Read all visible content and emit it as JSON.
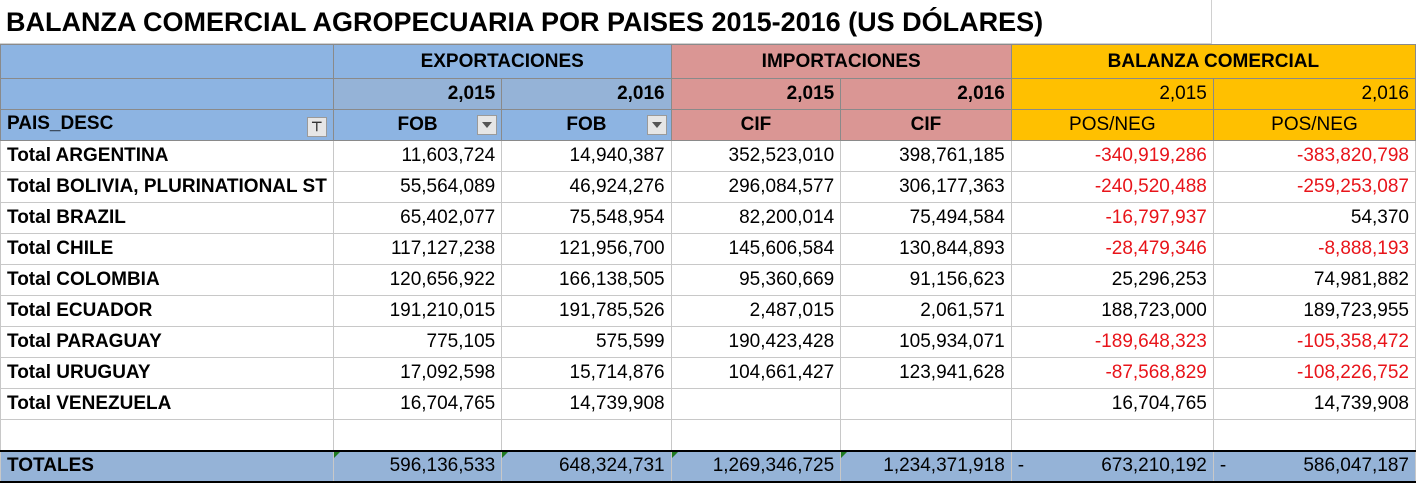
{
  "title": "BALANZA COMERCIAL AGROPECUARIA POR PAISES 2015-2016 (US DÓLARES)",
  "header": {
    "exportaciones": "EXPORTACIONES",
    "importaciones": "IMPORTACIONES",
    "balanza": "BALANZA COMERCIAL",
    "years": [
      "2,015",
      "2,016",
      "2,015",
      "2,016",
      "2,015",
      "2,016"
    ],
    "pais_desc": "PAIS_DESC",
    "units": [
      "FOB",
      "FOB",
      "CIF",
      "CIF",
      "POS/NEG",
      "POS/NEG"
    ]
  },
  "rows": [
    {
      "pais": "Total ARGENTINA",
      "exp2015": "11,603,724",
      "exp2016": "14,940,387",
      "imp2015": "352,523,010",
      "imp2016": "398,761,185",
      "bal2015": "-340,919,286",
      "bal2016": "-383,820,798"
    },
    {
      "pais": "Total BOLIVIA, PLURINATIONAL ST",
      "exp2015": "55,564,089",
      "exp2016": "46,924,276",
      "imp2015": "296,084,577",
      "imp2016": "306,177,363",
      "bal2015": "-240,520,488",
      "bal2016": "-259,253,087"
    },
    {
      "pais": "Total BRAZIL",
      "exp2015": "65,402,077",
      "exp2016": "75,548,954",
      "imp2015": "82,200,014",
      "imp2016": "75,494,584",
      "bal2015": "-16,797,937",
      "bal2016": "54,370"
    },
    {
      "pais": "Total CHILE",
      "exp2015": "117,127,238",
      "exp2016": "121,956,700",
      "imp2015": "145,606,584",
      "imp2016": "130,844,893",
      "bal2015": "-28,479,346",
      "bal2016": "-8,888,193"
    },
    {
      "pais": "Total COLOMBIA",
      "exp2015": "120,656,922",
      "exp2016": "166,138,505",
      "imp2015": "95,360,669",
      "imp2016": "91,156,623",
      "bal2015": "25,296,253",
      "bal2016": "74,981,882"
    },
    {
      "pais": "Total ECUADOR",
      "exp2015": "191,210,015",
      "exp2016": "191,785,526",
      "imp2015": "2,487,015",
      "imp2016": "2,061,571",
      "bal2015": "188,723,000",
      "bal2016": "189,723,955"
    },
    {
      "pais": "Total PARAGUAY",
      "exp2015": "775,105",
      "exp2016": "575,599",
      "imp2015": "190,423,428",
      "imp2016": "105,934,071",
      "bal2015": "-189,648,323",
      "bal2016": "-105,358,472"
    },
    {
      "pais": "Total URUGUAY",
      "exp2015": "17,092,598",
      "exp2016": "15,714,876",
      "imp2015": "104,661,427",
      "imp2016": "123,941,628",
      "bal2015": "-87,568,829",
      "bal2016": "-108,226,752"
    },
    {
      "pais": "Total VENEZUELA",
      "exp2015": "16,704,765",
      "exp2016": "14,739,908",
      "imp2015": "",
      "imp2016": "",
      "bal2015": "16,704,765",
      "bal2016": "14,739,908"
    }
  ],
  "totals": {
    "label": "TOTALES",
    "exp2015": "596,136,533",
    "exp2016": "648,324,731",
    "imp2015": "1,269,346,725",
    "imp2016": "1,234,371,918",
    "bal2015": "673,210,192",
    "bal2016": "586,047,187",
    "dash": "-"
  },
  "colors": {
    "negative": "#e8141a",
    "export_header": "#8db4e2",
    "import_header": "#da9694",
    "balance_header": "#ffc000"
  },
  "icons": {
    "filter": "filter-applied-icon",
    "dropdown": "dropdown-arrow-icon"
  }
}
